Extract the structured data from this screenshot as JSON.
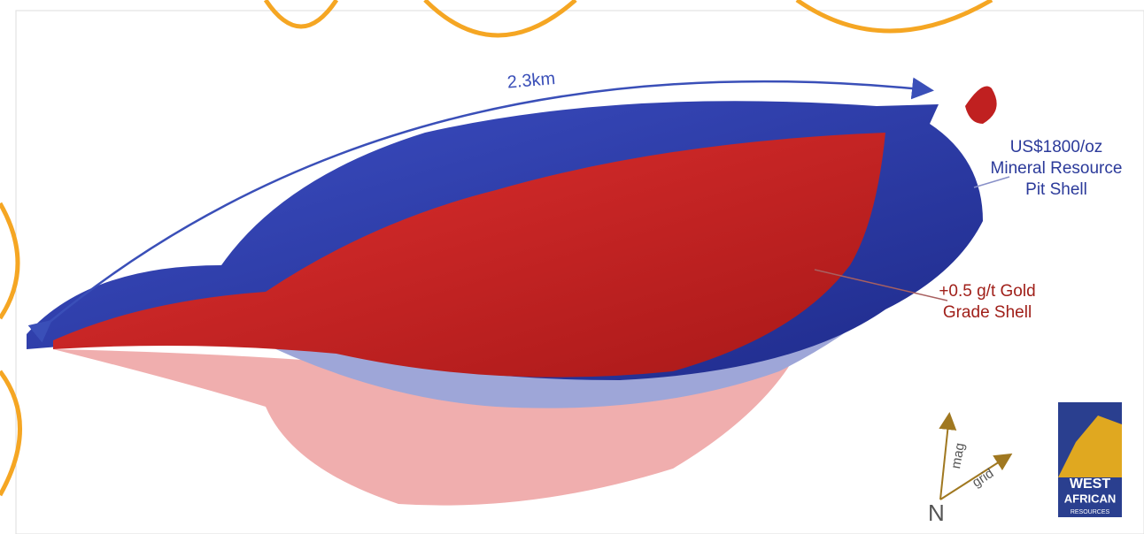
{
  "figure": {
    "dimension_label": "2.3km",
    "pit_shell_label": {
      "lines": [
        "US$1800/oz",
        "Mineral Resource",
        "Pit Shell"
      ]
    },
    "grade_shell_label": {
      "lines": [
        "+0.5 g/t Gold",
        "Grade Shell"
      ]
    },
    "north_arrow": {
      "mag": "mag",
      "grid": "grid",
      "north": "N"
    },
    "logo": {
      "lines": [
        "WEST",
        "AFRICAN",
        "RESOURCES"
      ]
    }
  }
}
